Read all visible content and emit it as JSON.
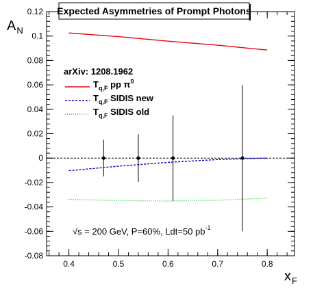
{
  "chart_data": {
    "type": "line",
    "title": "Expected Asymmetries of Prompt Photons",
    "xlabel": "x",
    "xlabel_sub": "F",
    "ylabel": "A",
    "ylabel_sub": "N",
    "xlim": [
      0.355,
      0.855
    ],
    "ylim": [
      -0.08,
      0.12
    ],
    "x_ticks": [
      0.4,
      0.5,
      0.6,
      0.7,
      0.8
    ],
    "x_tick_labels": [
      "0.4",
      "0.5",
      "0.6",
      "0.7",
      "0.8"
    ],
    "y_ticks": [
      -0.08,
      -0.06,
      -0.04,
      -0.02,
      0,
      0.02,
      0.04,
      0.06,
      0.08,
      0.1,
      0.12
    ],
    "y_tick_labels": [
      "-0.08",
      "-0.06",
      "-0.04",
      "-0.02",
      "0",
      "0.02",
      "0.04",
      "0.06",
      "0.08",
      "0.1",
      "0.12"
    ],
    "zero_line": true,
    "legend": {
      "header": "arXiv: 1208.1962",
      "placement": "upper-left",
      "entries": [
        {
          "main": "T",
          "sub": "q,F",
          "text": " pp π",
          "sup": "0"
        },
        {
          "main": "T",
          "sub": "q,F",
          "text": " SIDIS new",
          "sup": ""
        },
        {
          "main": "T",
          "sub": "q,F",
          "text": " SIDIS old",
          "sup": ""
        }
      ]
    },
    "series": [
      {
        "color": "#e8000b",
        "style": "solid",
        "x": [
          0.4,
          0.5,
          0.6,
          0.7,
          0.8
        ],
        "y": [
          0.1025,
          0.0995,
          0.0958,
          0.0925,
          0.0885
        ]
      },
      {
        "color": "#0000cc",
        "style": "dashed",
        "x": [
          0.4,
          0.5,
          0.6,
          0.7,
          0.8
        ],
        "y": [
          -0.0103,
          -0.0066,
          -0.0035,
          -0.0012,
          0.0
        ]
      },
      {
        "color": "#22cc22",
        "style": "dotted",
        "x": [
          0.4,
          0.5,
          0.6,
          0.7,
          0.8
        ],
        "y": [
          -0.0338,
          -0.0348,
          -0.0352,
          -0.0345,
          -0.0328
        ]
      }
    ],
    "error_points": [
      {
        "x": 0.47,
        "y": 0,
        "err": 0.015
      },
      {
        "x": 0.54,
        "y": 0,
        "err": 0.0195
      },
      {
        "x": 0.61,
        "y": 0,
        "err": 0.035
      },
      {
        "x": 0.75,
        "y": 0,
        "err": 0.06
      }
    ],
    "annotation": {
      "main": "√s = 200 GeV, P=60%, Ldt=50 pb",
      "sup": "-1"
    }
  }
}
